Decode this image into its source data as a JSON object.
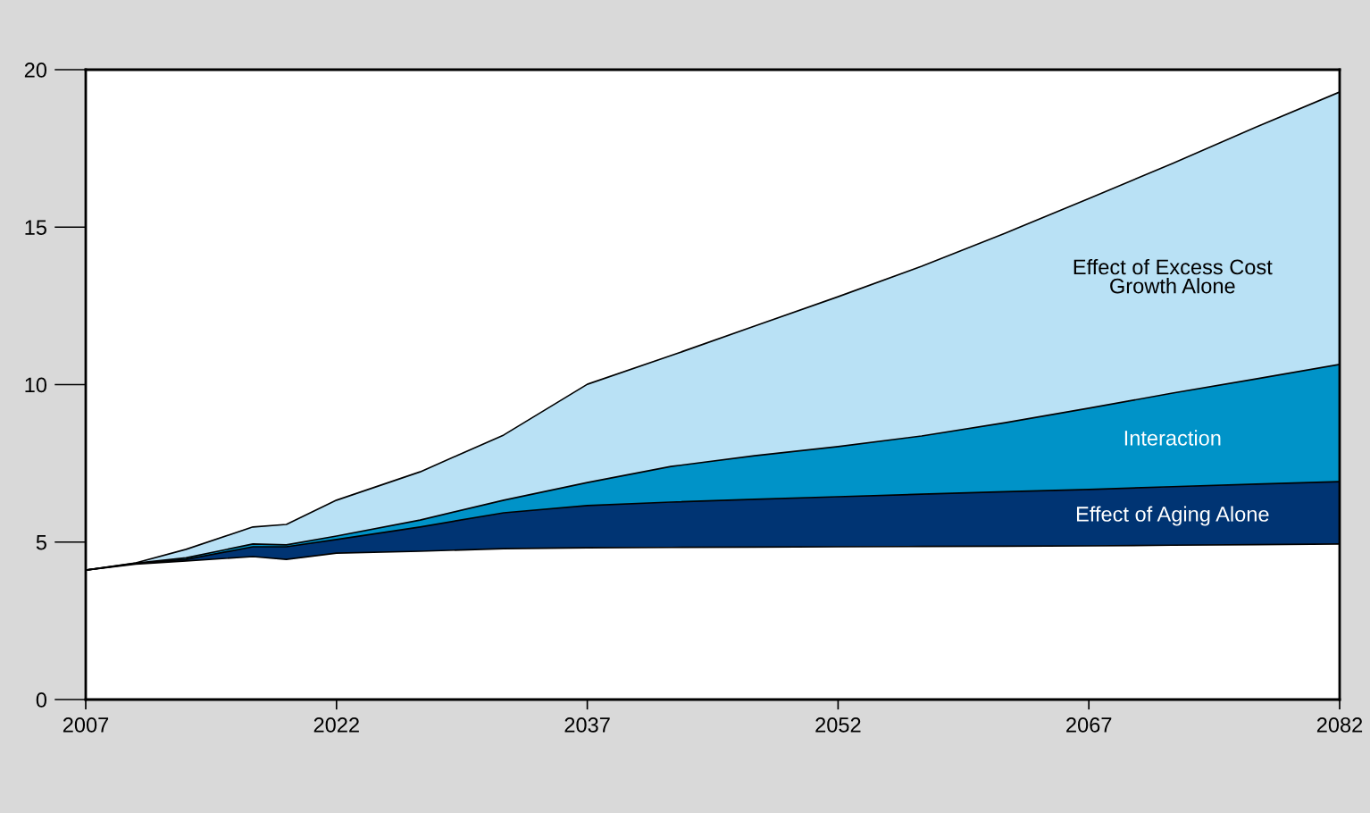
{
  "chart_data": {
    "type": "area",
    "stacked": true,
    "x": [
      2007,
      2010,
      2013,
      2017,
      2019,
      2022,
      2027,
      2032,
      2037,
      2042,
      2047,
      2052,
      2057,
      2062,
      2067,
      2072,
      2077,
      2082
    ],
    "series": [
      {
        "color": "#ffffff",
        "values": [
          4.11,
          4.3,
          4.4,
          4.54,
          4.45,
          4.65,
          4.71,
          4.79,
          4.82,
          4.83,
          4.84,
          4.85,
          4.86,
          4.87,
          4.88,
          4.9,
          4.92,
          4.94
        ]
      },
      {
        "name": "Effect of Aging Alone",
        "color": "#003473",
        "values": [
          0,
          0.02,
          0.05,
          0.31,
          0.4,
          0.43,
          0.77,
          1.14,
          1.34,
          1.44,
          1.52,
          1.59,
          1.66,
          1.73,
          1.79,
          1.86,
          1.92,
          1.98
        ]
      },
      {
        "name": "Interaction",
        "color": "#0093c8",
        "values": [
          0,
          0.01,
          0.05,
          0.09,
          0.06,
          0.11,
          0.22,
          0.4,
          0.73,
          1.13,
          1.38,
          1.59,
          1.85,
          2.19,
          2.58,
          2.97,
          3.34,
          3.72
        ]
      },
      {
        "name": "Effect of Excess Cost\nGrowth Alone",
        "color": "#b9e1f5",
        "values": [
          0,
          0.01,
          0.27,
          0.54,
          0.65,
          1.14,
          1.53,
          2.07,
          3.12,
          3.52,
          4.12,
          4.76,
          5.39,
          6.02,
          6.66,
          7.29,
          8.0,
          8.65
        ]
      }
    ],
    "xlim": [
      2007,
      2082
    ],
    "xticks": [
      2007,
      2022,
      2037,
      2052,
      2067,
      2082
    ],
    "ylim": [
      0,
      20
    ],
    "yticks": [
      0,
      5,
      10,
      15,
      20
    ],
    "grid": false,
    "legend": false
  }
}
